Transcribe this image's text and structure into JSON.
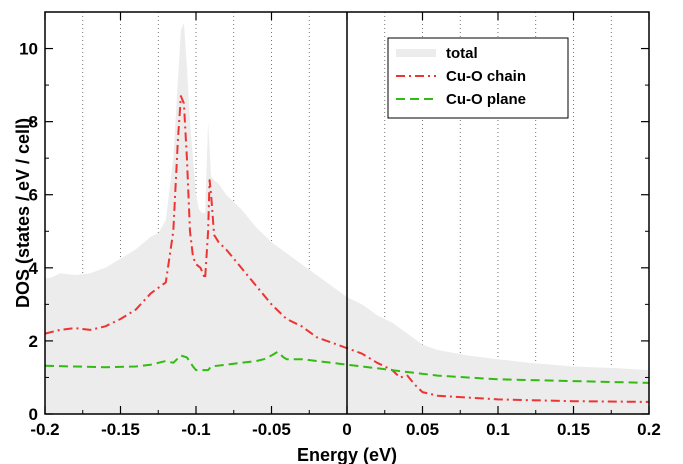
{
  "chart_data": {
    "type": "area",
    "xlabel": "Energy (eV)",
    "ylabel": "DOS (states / eV / cell)",
    "xlim": [
      -0.2,
      0.2
    ],
    "ylim": [
      0,
      11
    ],
    "xticks": [
      -0.2,
      -0.15,
      -0.1,
      -0.05,
      0,
      0.05,
      0.1,
      0.15,
      0.2
    ],
    "xtick_labels": [
      "-0.2",
      "-0.15",
      "-0.1",
      "-0.05",
      "0",
      "0.05",
      "0.1",
      "0.15",
      "0.2"
    ],
    "yticks": [
      0,
      2,
      4,
      6,
      8,
      10
    ],
    "ytick_labels": [
      "0",
      "2",
      "4",
      "6",
      "8",
      "10"
    ],
    "grid": "dotted vertical lines every 0.025 eV",
    "legend_position": "top-right",
    "series": [
      {
        "name": "total",
        "style": "filled area",
        "color": "#ececec",
        "x": [
          -0.2,
          -0.195,
          -0.19,
          -0.18,
          -0.17,
          -0.16,
          -0.15,
          -0.14,
          -0.13,
          -0.125,
          -0.12,
          -0.115,
          -0.11,
          -0.108,
          -0.106,
          -0.104,
          -0.102,
          -0.1,
          -0.098,
          -0.096,
          -0.094,
          -0.092,
          -0.09,
          -0.088,
          -0.085,
          -0.08,
          -0.07,
          -0.06,
          -0.05,
          -0.04,
          -0.03,
          -0.02,
          -0.01,
          0,
          0.01,
          0.02,
          0.03,
          0.04,
          0.05,
          0.06,
          0.08,
          0.1,
          0.12,
          0.15,
          0.18,
          0.2
        ],
        "y": [
          3.7,
          3.75,
          3.85,
          3.8,
          3.85,
          4.0,
          4.25,
          4.5,
          4.85,
          4.95,
          5.3,
          7.0,
          10.5,
          10.7,
          9.5,
          8.0,
          7.0,
          6.0,
          5.6,
          5.5,
          5.5,
          8.0,
          6.5,
          6.4,
          6.3,
          6.0,
          5.6,
          5.1,
          4.7,
          4.4,
          4.1,
          3.8,
          3.5,
          3.2,
          3.0,
          2.7,
          2.5,
          2.2,
          1.9,
          1.75,
          1.6,
          1.5,
          1.4,
          1.3,
          1.25,
          1.2
        ]
      },
      {
        "name": "Cu-O chain",
        "style": "dash-dot",
        "color": "#ee3333",
        "x": [
          -0.2,
          -0.19,
          -0.18,
          -0.17,
          -0.16,
          -0.15,
          -0.14,
          -0.13,
          -0.12,
          -0.115,
          -0.112,
          -0.11,
          -0.108,
          -0.106,
          -0.104,
          -0.102,
          -0.1,
          -0.097,
          -0.094,
          -0.092,
          -0.091,
          -0.09,
          -0.088,
          -0.085,
          -0.08,
          -0.07,
          -0.06,
          -0.05,
          -0.04,
          -0.03,
          -0.02,
          -0.01,
          0,
          0.01,
          0.02,
          0.03,
          0.035,
          0.04,
          0.045,
          0.05,
          0.06,
          0.08,
          0.1,
          0.15,
          0.2
        ],
        "y": [
          2.2,
          2.3,
          2.35,
          2.3,
          2.4,
          2.6,
          2.85,
          3.3,
          3.6,
          5.0,
          7.5,
          8.7,
          8.5,
          7.0,
          5.0,
          4.3,
          4.1,
          4.0,
          3.7,
          5.0,
          6.4,
          6.0,
          4.9,
          4.7,
          4.5,
          4.0,
          3.5,
          3.0,
          2.6,
          2.4,
          2.1,
          1.95,
          1.8,
          1.65,
          1.4,
          1.2,
          1.0,
          1.05,
          0.8,
          0.6,
          0.5,
          0.45,
          0.4,
          0.35,
          0.33
        ]
      },
      {
        "name": "Cu-O plane",
        "style": "dashed",
        "color": "#33bb11",
        "x": [
          -0.2,
          -0.18,
          -0.16,
          -0.14,
          -0.13,
          -0.12,
          -0.115,
          -0.11,
          -0.106,
          -0.102,
          -0.1,
          -0.096,
          -0.092,
          -0.09,
          -0.08,
          -0.07,
          -0.06,
          -0.055,
          -0.05,
          -0.046,
          -0.042,
          -0.04,
          -0.03,
          -0.02,
          -0.01,
          0,
          0.02,
          0.04,
          0.06,
          0.08,
          0.1,
          0.15,
          0.2
        ],
        "y": [
          1.32,
          1.3,
          1.28,
          1.3,
          1.35,
          1.45,
          1.4,
          1.6,
          1.55,
          1.3,
          1.2,
          1.2,
          1.2,
          1.3,
          1.35,
          1.4,
          1.45,
          1.5,
          1.6,
          1.7,
          1.55,
          1.5,
          1.5,
          1.45,
          1.4,
          1.35,
          1.25,
          1.15,
          1.05,
          1.0,
          0.95,
          0.9,
          0.85
        ]
      }
    ]
  }
}
